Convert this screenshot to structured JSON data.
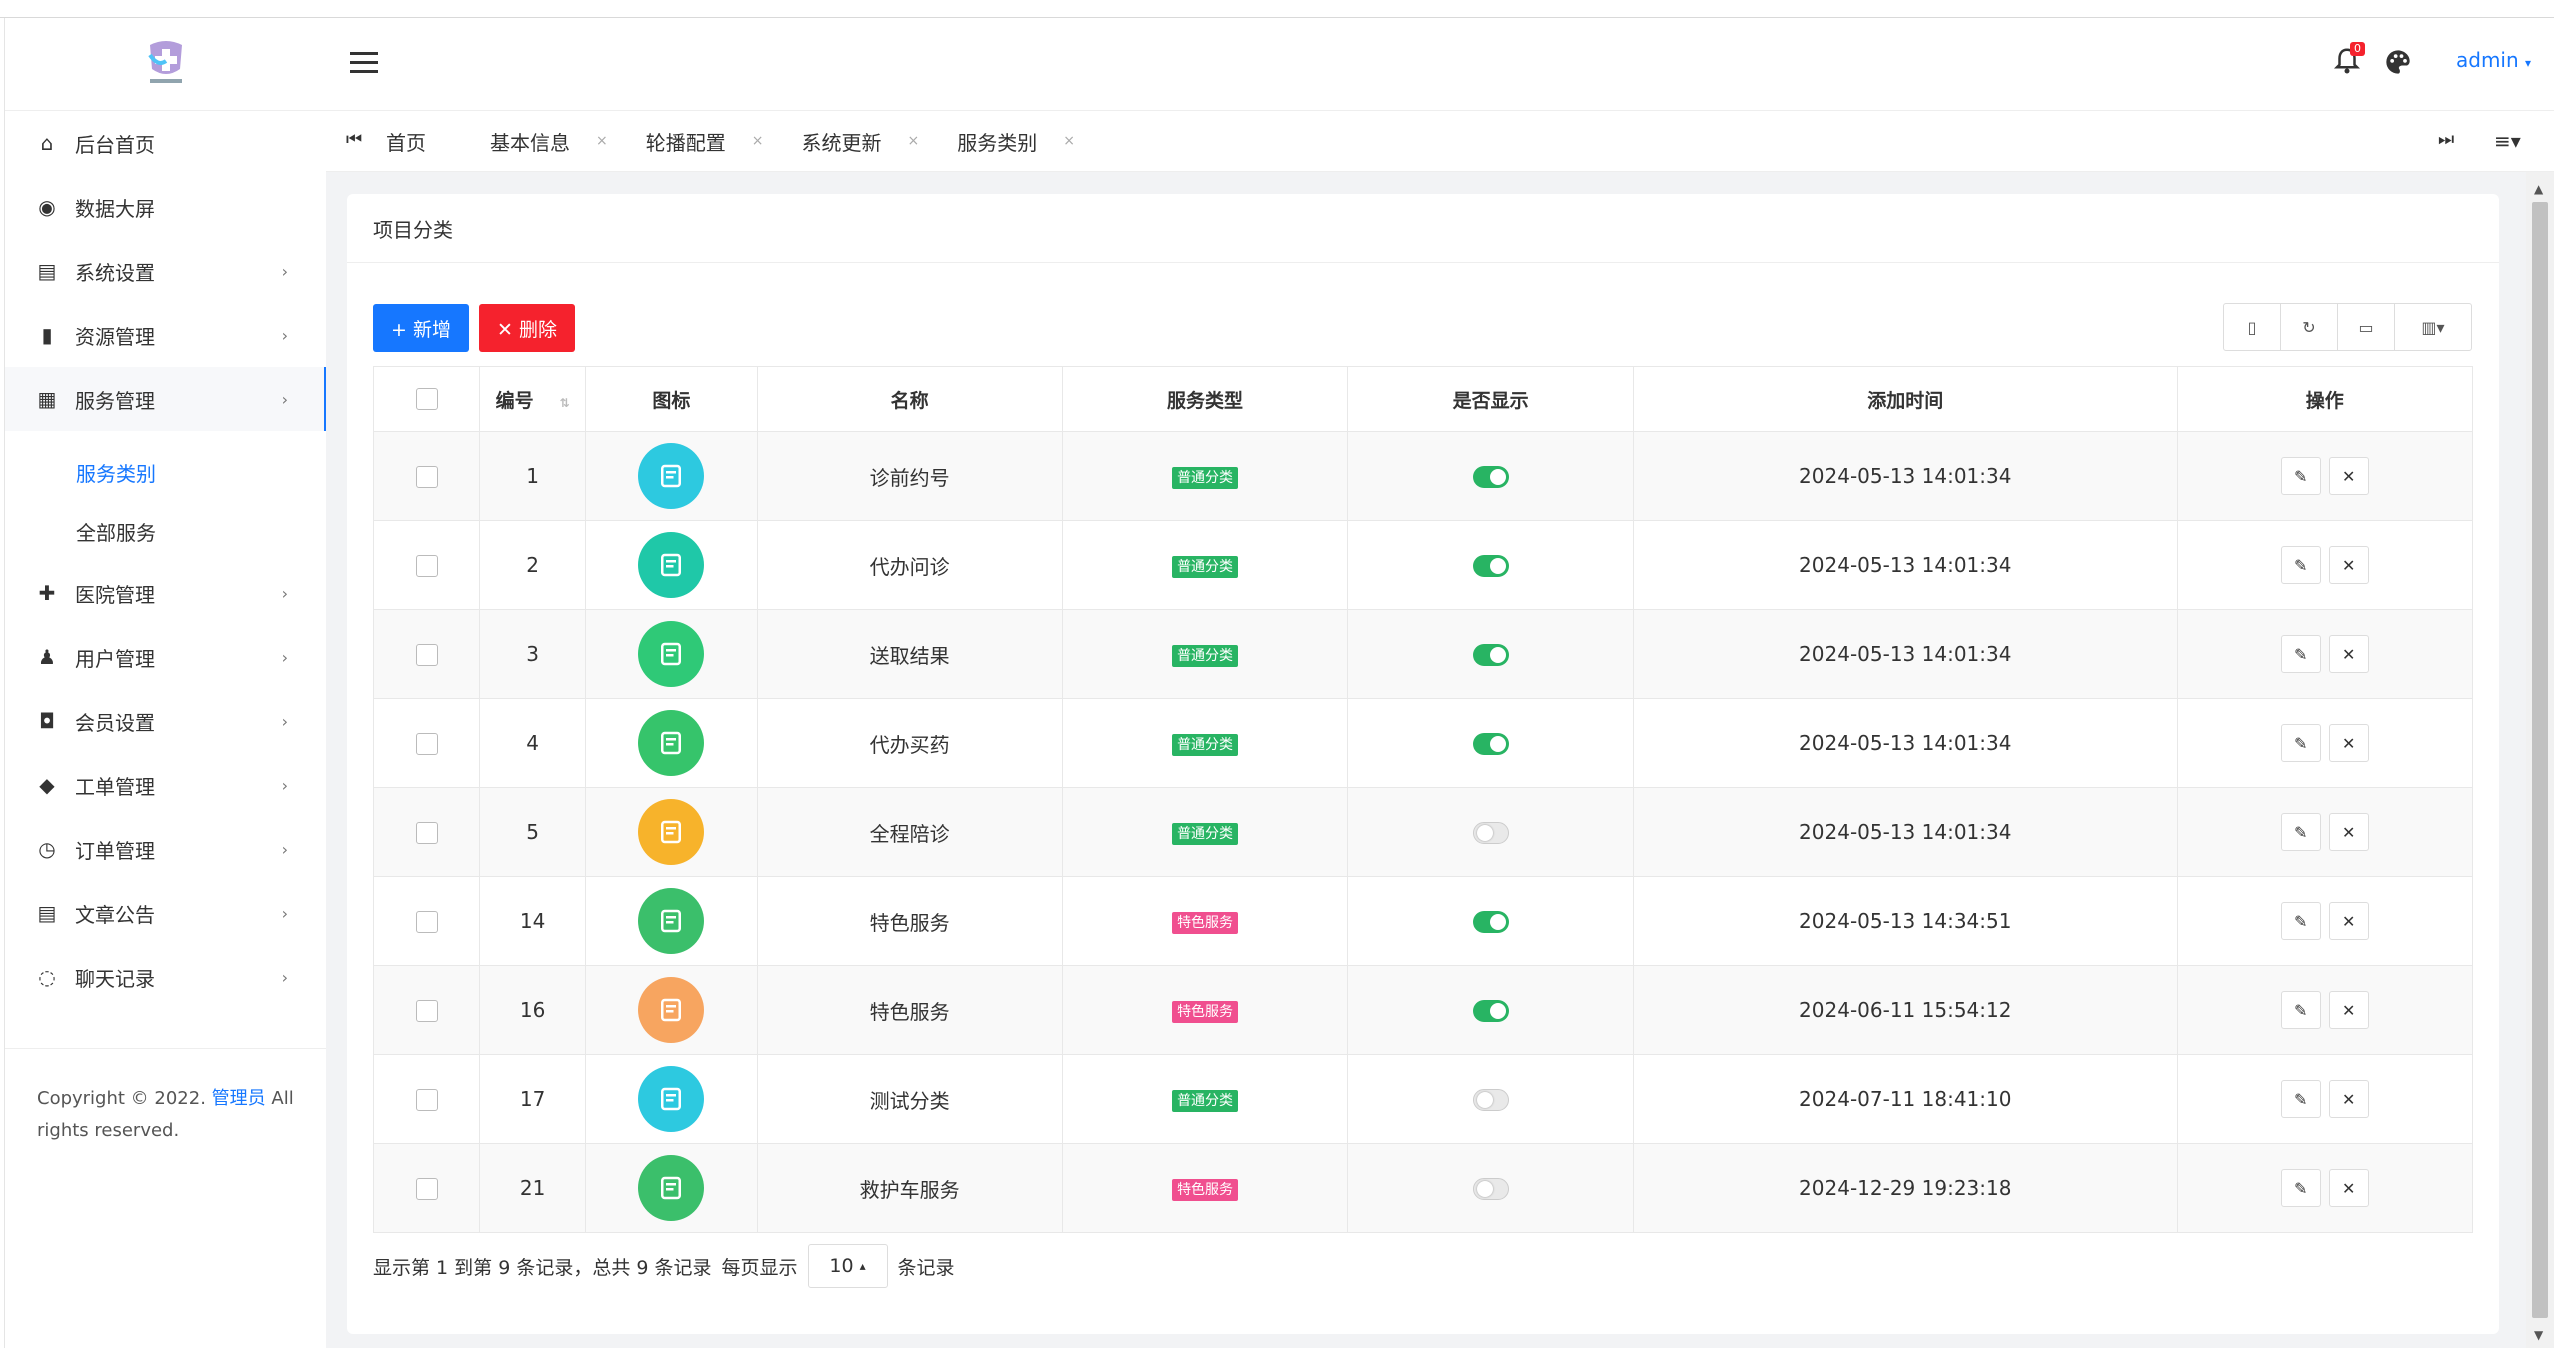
{
  "header": {
    "user": "admin",
    "notify_count": "0"
  },
  "sidebar": {
    "items": [
      {
        "label": "后台首页",
        "icon": "dashboard-icon",
        "arrow": ""
      },
      {
        "label": "数据大屏",
        "icon": "eye-icon",
        "arrow": ""
      },
      {
        "label": "系统设置",
        "icon": "settings-panel-icon",
        "arrow": "›"
      },
      {
        "label": "资源管理",
        "icon": "file-icon",
        "arrow": "›"
      },
      {
        "label": "服务管理",
        "icon": "grid-icon",
        "arrow": "›"
      },
      {
        "label": "医院管理",
        "icon": "plus-icon",
        "arrow": "›"
      },
      {
        "label": "用户管理",
        "icon": "user-icon",
        "arrow": "›"
      },
      {
        "label": "会员设置",
        "icon": "badge-icon",
        "arrow": "›"
      },
      {
        "label": "工单管理",
        "icon": "layers-icon",
        "arrow": "›"
      },
      {
        "label": "订单管理",
        "icon": "history-icon",
        "arrow": "›"
      },
      {
        "label": "文章公告",
        "icon": "document-icon",
        "arrow": "›"
      },
      {
        "label": "聊天记录",
        "icon": "chat-icon",
        "arrow": "›"
      }
    ],
    "submenu": [
      "服务类别",
      "全部服务"
    ],
    "footer_prefix": "Copyright © 2022.",
    "footer_link": "管理员",
    "footer_suffix": "All rights reserved."
  },
  "tabs": [
    {
      "label": "首页",
      "closable": ""
    },
    {
      "label": "基本信息",
      "closable": "×"
    },
    {
      "label": "轮播配置",
      "closable": "×"
    },
    {
      "label": "系统更新",
      "closable": "×"
    },
    {
      "label": "服务类别",
      "closable": "×"
    }
  ],
  "card": {
    "title": "项目分类"
  },
  "toolbar": {
    "add": "+ 新增",
    "delete": "✕ 删除"
  },
  "table": {
    "headers": [
      "编号",
      "图标",
      "名称",
      "服务类型",
      "是否显示",
      "添加时间",
      "操作"
    ],
    "rows": [
      {
        "id": "1",
        "name": "诊前约号",
        "type": "普通分类",
        "show": true,
        "time": "2024-05-13 14:01:34",
        "icon_color": "#2dc9e0"
      },
      {
        "id": "2",
        "name": "代办问诊",
        "type": "普通分类",
        "show": true,
        "time": "2024-05-13 14:01:34",
        "icon_color": "#1fc8a8"
      },
      {
        "id": "3",
        "name": "送取结果",
        "type": "普通分类",
        "show": true,
        "time": "2024-05-13 14:01:34",
        "icon_color": "#2fc977"
      },
      {
        "id": "4",
        "name": "代办买药",
        "type": "普通分类",
        "show": true,
        "time": "2024-05-13 14:01:34",
        "icon_color": "#36c46b"
      },
      {
        "id": "5",
        "name": "全程陪诊",
        "type": "普通分类",
        "show": false,
        "time": "2024-05-13 14:01:34",
        "icon_color": "#f7b32b"
      },
      {
        "id": "14",
        "name": "特色服务",
        "type": "特色服务",
        "show": true,
        "time": "2024-05-13 14:34:51",
        "icon_color": "#3bbf6b"
      },
      {
        "id": "16",
        "name": "特色服务",
        "type": "特色服务",
        "show": true,
        "time": "2024-06-11 15:54:12",
        "icon_color": "#f7a560"
      },
      {
        "id": "17",
        "name": "测试分类",
        "type": "普通分类",
        "show": false,
        "time": "2024-07-11 18:41:10",
        "icon_color": "#2dc9e0"
      },
      {
        "id": "21",
        "name": "救护车服务",
        "type": "特色服务",
        "show": false,
        "time": "2024-12-29 19:23:18",
        "icon_color": "#3bbf6b"
      }
    ]
  },
  "pager": {
    "summary": "显示第 1 到第 9 条记录，总共 9 条记录",
    "per_page_label": "每页显示",
    "per_page": "10",
    "suffix": "条记录"
  },
  "colors": {
    "primary": "#1677ff",
    "danger": "#f5222d",
    "normal_tag": "#28b463",
    "special_tag": "#f04f8f"
  }
}
